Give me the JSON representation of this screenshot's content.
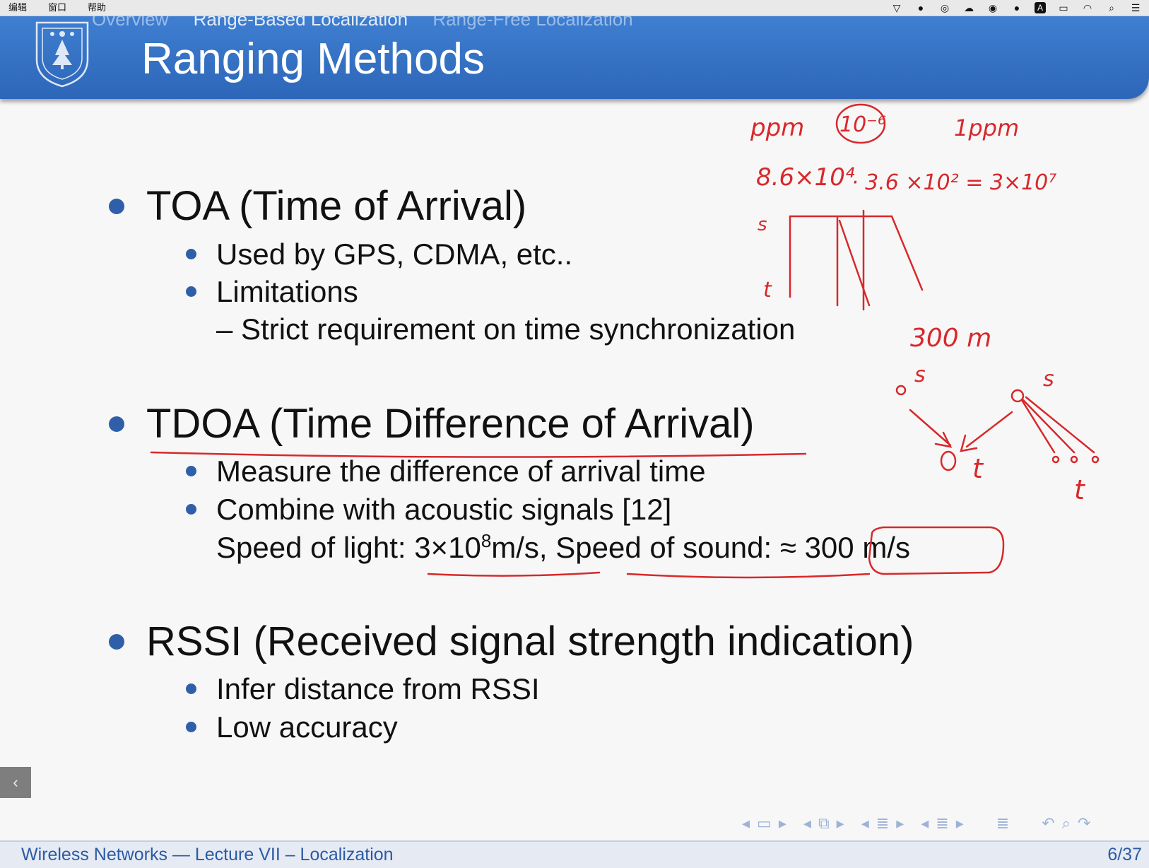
{
  "menubar": {
    "items": [
      "编辑",
      "窗口",
      "帮助"
    ],
    "status_icons": [
      "vector-icon",
      "qq-icon",
      "wechat-icon",
      "cloud-icon",
      "clock-icon",
      "avatar-icon",
      "input-method-icon",
      "battery-icon",
      "wifi-icon",
      "search-icon",
      "control-center-icon"
    ],
    "input_method_label": "A"
  },
  "header": {
    "breadcrumb": [
      "Overview",
      "Range-Based Localization",
      "Range-Free Localization"
    ],
    "title": "Ranging Methods"
  },
  "slide": {
    "toa": {
      "title": "TOA (Time of Arrival)",
      "items": [
        "Used by GPS, CDMA, etc..",
        "Limitations"
      ],
      "sub": "– Strict requirement on time synchronization"
    },
    "tdoa": {
      "title": "TDOA (Time Difference of Arrival)",
      "items": [
        "Measure the difference of arrival time",
        "Combine with acoustic signals [12]"
      ],
      "speed_line_a": "Speed of light: 3×10",
      "speed_line_exp": "8",
      "speed_line_b": "m/s, Speed of sound: ≈ 300 m/s"
    },
    "rssi": {
      "title": "RSSI (Received signal strength indication)",
      "items": [
        "Infer distance from RSSI",
        "Low accuracy"
      ]
    }
  },
  "annotations": {
    "ppm": "ppm",
    "ten_neg6": "10⁻⁶",
    "one_ppm": "1ppm",
    "product_a": "8.6×10⁴",
    "product_b": "· 3.6 ×10² = 3×10⁷",
    "s_label": "s",
    "t_label": "t",
    "dist": "300 m",
    "s2": "s",
    "t2": "t",
    "s3": "s",
    "t3": "t"
  },
  "navigation": {
    "prev_tab": "‹"
  },
  "footer": {
    "left": "Wireless Networks — Lecture VII – Localization",
    "page": "6/37"
  }
}
